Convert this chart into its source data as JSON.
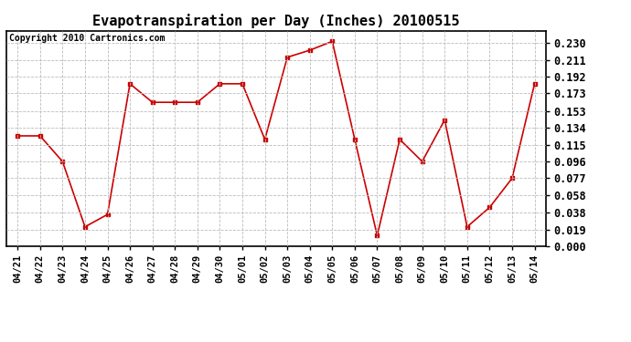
{
  "title": "Evapotranspiration per Day (Inches) 20100515",
  "copyright": "Copyright 2010 Cartronics.com",
  "x_labels": [
    "04/21",
    "04/22",
    "04/23",
    "04/24",
    "04/25",
    "04/26",
    "04/27",
    "04/28",
    "04/29",
    "04/30",
    "05/01",
    "05/02",
    "05/03",
    "05/04",
    "05/05",
    "05/06",
    "05/07",
    "05/08",
    "05/09",
    "05/10",
    "05/11",
    "05/12",
    "05/13",
    "05/14"
  ],
  "y_values": [
    0.125,
    0.125,
    0.096,
    0.022,
    0.036,
    0.184,
    0.163,
    0.163,
    0.163,
    0.184,
    0.184,
    0.121,
    0.214,
    0.222,
    0.232,
    0.121,
    0.012,
    0.121,
    0.096,
    0.143,
    0.022,
    0.044,
    0.077,
    0.184
  ],
  "line_color": "#cc0000",
  "marker": "s",
  "marker_size": 3,
  "y_ticks": [
    0.0,
    0.019,
    0.038,
    0.058,
    0.077,
    0.096,
    0.115,
    0.134,
    0.153,
    0.173,
    0.192,
    0.211,
    0.23
  ],
  "ylim": [
    0.0,
    0.244
  ],
  "grid_color": "#bbbbbb",
  "background_color": "#ffffff",
  "title_fontsize": 11,
  "copyright_fontsize": 7,
  "tick_fontsize": 7.5,
  "ytick_fontsize": 8.5
}
